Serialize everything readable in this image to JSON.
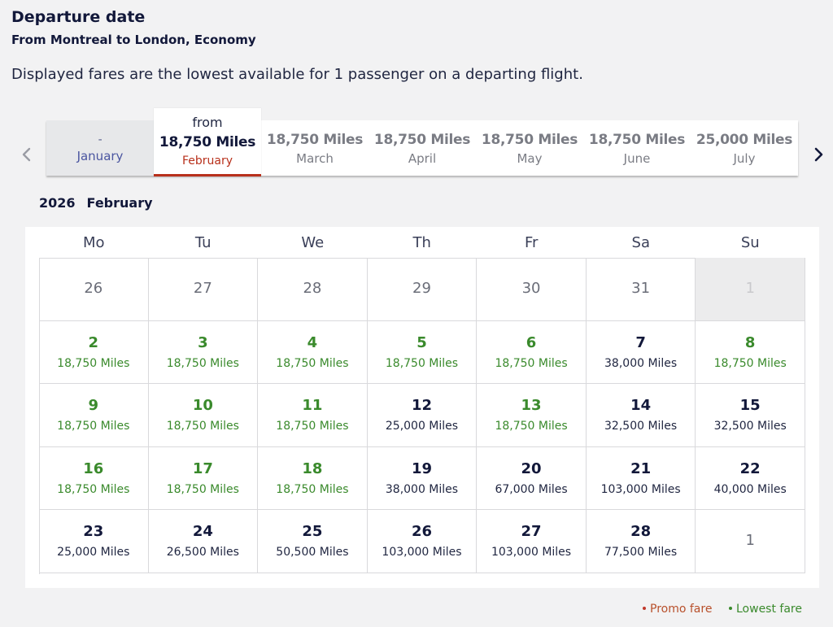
{
  "header": {
    "title": "Departure date",
    "subtitle": "From Montreal to London, Economy",
    "info": "Displayed fares are the lowest available for 1 passenger on a departing flight."
  },
  "months": {
    "january": {
      "miles": "-",
      "name": "January"
    },
    "selected": {
      "from": "from",
      "miles": "18,750 Miles",
      "name": "February"
    },
    "march": {
      "miles": "18,750 Miles",
      "name": "March"
    },
    "april": {
      "miles": "18,750 Miles",
      "name": "April"
    },
    "may": {
      "miles": "18,750 Miles",
      "name": "May"
    },
    "june": {
      "miles": "18,750 Miles",
      "name": "June"
    },
    "july": {
      "miles": "25,000 Miles",
      "name": "July"
    }
  },
  "calendar": {
    "year": "2026",
    "month": "February",
    "weekdays": [
      "Mo",
      "Tu",
      "We",
      "Th",
      "Fr",
      "Sa",
      "Su"
    ],
    "cells": [
      {
        "day": "26",
        "price": "",
        "kind": "outside"
      },
      {
        "day": "27",
        "price": "",
        "kind": "outside"
      },
      {
        "day": "28",
        "price": "",
        "kind": "outside"
      },
      {
        "day": "29",
        "price": "",
        "kind": "outside"
      },
      {
        "day": "30",
        "price": "",
        "kind": "outside"
      },
      {
        "day": "31",
        "price": "",
        "kind": "outside"
      },
      {
        "day": "1",
        "price": "",
        "kind": "disabled"
      },
      {
        "day": "2",
        "price": "18,750 Miles",
        "kind": "low"
      },
      {
        "day": "3",
        "price": "18,750 Miles",
        "kind": "low"
      },
      {
        "day": "4",
        "price": "18,750 Miles",
        "kind": "low"
      },
      {
        "day": "5",
        "price": "18,750 Miles",
        "kind": "low"
      },
      {
        "day": "6",
        "price": "18,750 Miles",
        "kind": "low"
      },
      {
        "day": "7",
        "price": "38,000 Miles",
        "kind": "normal"
      },
      {
        "day": "8",
        "price": "18,750 Miles",
        "kind": "low"
      },
      {
        "day": "9",
        "price": "18,750 Miles",
        "kind": "low"
      },
      {
        "day": "10",
        "price": "18,750 Miles",
        "kind": "low"
      },
      {
        "day": "11",
        "price": "18,750 Miles",
        "kind": "low"
      },
      {
        "day": "12",
        "price": "25,000 Miles",
        "kind": "normal"
      },
      {
        "day": "13",
        "price": "18,750 Miles",
        "kind": "low"
      },
      {
        "day": "14",
        "price": "32,500 Miles",
        "kind": "normal"
      },
      {
        "day": "15",
        "price": "32,500 Miles",
        "kind": "normal"
      },
      {
        "day": "16",
        "price": "18,750 Miles",
        "kind": "low"
      },
      {
        "day": "17",
        "price": "18,750 Miles",
        "kind": "low"
      },
      {
        "day": "18",
        "price": "18,750 Miles",
        "kind": "low"
      },
      {
        "day": "19",
        "price": "38,000 Miles",
        "kind": "normal"
      },
      {
        "day": "20",
        "price": "67,000 Miles",
        "kind": "normal"
      },
      {
        "day": "21",
        "price": "103,000 Miles",
        "kind": "normal"
      },
      {
        "day": "22",
        "price": "40,000 Miles",
        "kind": "normal"
      },
      {
        "day": "23",
        "price": "25,000 Miles",
        "kind": "normal"
      },
      {
        "day": "24",
        "price": "26,500 Miles",
        "kind": "normal"
      },
      {
        "day": "25",
        "price": "50,500 Miles",
        "kind": "normal"
      },
      {
        "day": "26",
        "price": "103,000 Miles",
        "kind": "normal"
      },
      {
        "day": "27",
        "price": "103,000 Miles",
        "kind": "normal"
      },
      {
        "day": "28",
        "price": "77,500 Miles",
        "kind": "normal"
      },
      {
        "day": "1",
        "price": "",
        "kind": "nextm"
      }
    ]
  },
  "legend": {
    "promo": "Promo fare",
    "lowest": "Lowest fare"
  },
  "icons": {
    "prev": "chevron-left-icon",
    "next": "chevron-right-icon"
  },
  "colors": {
    "lowest_fare": "#3a8a2c",
    "promo_fare": "#b8502b",
    "selected_accent": "#b8301b"
  }
}
